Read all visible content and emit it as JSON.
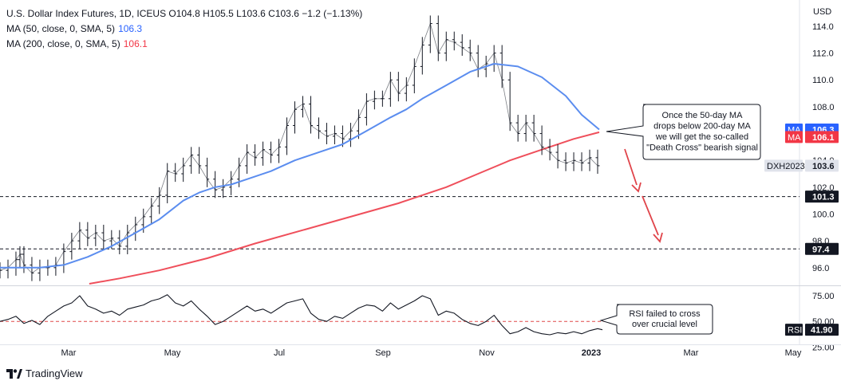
{
  "legend": {
    "main": "U.S. Dollar Index Futures, 1D, ICEUS  O104.8  H105.5  L103.6  C103.6  −1.2 (−1.13%)",
    "ma50_label": "MA (50, close, 0, SMA, 5)",
    "ma50_value": "106.3",
    "ma200_label": "MA (200, close, 0, SMA, 5)",
    "ma200_value": "106.1"
  },
  "currency": "USD",
  "brand": "TradingView",
  "colors": {
    "ma50": "#5b8def",
    "ma200": "#ef4f5b",
    "price": "#131722",
    "rsi": "#131722",
    "rsi_mid": "#e04848",
    "arrow": "#e0444a"
  },
  "chart_data": [
    {
      "type": "line",
      "panel": "price",
      "ylim": [
        94.8,
        115.6
      ],
      "y_ticks": [
        "114.0",
        "112.0",
        "110.0",
        "108.0",
        "104.0",
        "102.0",
        "100.0",
        "98.0",
        "96.0"
      ],
      "x_ticks": [
        "Mar",
        "May",
        "Jul",
        "Sep",
        "Nov",
        "2023",
        "Mar",
        "May"
      ],
      "price_points": [
        [
          0,
          95.8
        ],
        [
          10,
          96.0
        ],
        [
          20,
          96.6
        ],
        [
          25,
          97.0
        ],
        [
          30,
          96.2
        ],
        [
          40,
          95.6
        ],
        [
          50,
          96.0
        ],
        [
          60,
          96.0
        ],
        [
          70,
          96.2
        ],
        [
          80,
          97.2
        ],
        [
          90,
          98.0
        ],
        [
          100,
          98.8
        ],
        [
          110,
          98.2
        ],
        [
          120,
          98.6
        ],
        [
          130,
          98.0
        ],
        [
          140,
          98.2
        ],
        [
          150,
          97.6
        ],
        [
          160,
          98.6
        ],
        [
          170,
          99.2
        ],
        [
          180,
          99.8
        ],
        [
          190,
          100.6
        ],
        [
          200,
          101.4
        ],
        [
          210,
          103.2
        ],
        [
          220,
          103.0
        ],
        [
          230,
          103.6
        ],
        [
          240,
          104.4
        ],
        [
          250,
          103.6
        ],
        [
          260,
          102.6
        ],
        [
          270,
          101.8
        ],
        [
          280,
          102.0
        ],
        [
          290,
          102.6
        ],
        [
          300,
          103.6
        ],
        [
          310,
          104.6
        ],
        [
          320,
          104.2
        ],
        [
          330,
          104.8
        ],
        [
          340,
          104.4
        ],
        [
          350,
          105.0
        ],
        [
          360,
          106.6
        ],
        [
          370,
          107.8
        ],
        [
          380,
          108.2
        ],
        [
          390,
          106.6
        ],
        [
          400,
          106.2
        ],
        [
          410,
          105.8
        ],
        [
          420,
          106.0
        ],
        [
          430,
          105.6
        ],
        [
          440,
          106.2
        ],
        [
          450,
          107.2
        ],
        [
          460,
          108.4
        ],
        [
          470,
          108.6
        ],
        [
          480,
          108.6
        ],
        [
          490,
          110.0
        ],
        [
          500,
          109.0
        ],
        [
          510,
          109.6
        ],
        [
          520,
          111.0
        ],
        [
          530,
          112.6
        ],
        [
          540,
          114.2
        ],
        [
          550,
          112.0
        ],
        [
          560,
          113.0
        ],
        [
          570,
          112.8
        ],
        [
          580,
          112.4
        ],
        [
          590,
          112.0
        ],
        [
          600,
          110.8
        ],
        [
          610,
          111.2
        ],
        [
          620,
          112.0
        ],
        [
          630,
          110.0
        ],
        [
          640,
          106.8
        ],
        [
          650,
          106.0
        ],
        [
          660,
          106.8
        ],
        [
          670,
          106.0
        ],
        [
          680,
          105.0
        ],
        [
          690,
          104.6
        ],
        [
          700,
          104.0
        ],
        [
          710,
          103.8
        ],
        [
          720,
          104.0
        ],
        [
          730,
          103.8
        ],
        [
          740,
          104.2
        ],
        [
          750,
          103.6
        ]
      ],
      "ma50_points": [
        [
          0,
          96.0
        ],
        [
          50,
          96.0
        ],
        [
          80,
          96.2
        ],
        [
          110,
          96.8
        ],
        [
          140,
          97.6
        ],
        [
          170,
          98.6
        ],
        [
          200,
          99.6
        ],
        [
          230,
          101.0
        ],
        [
          250,
          101.6
        ],
        [
          270,
          102.0
        ],
        [
          290,
          102.2
        ],
        [
          310,
          102.6
        ],
        [
          340,
          103.2
        ],
        [
          370,
          104.0
        ],
        [
          400,
          104.6
        ],
        [
          430,
          105.2
        ],
        [
          460,
          106.2
        ],
        [
          490,
          107.2
        ],
        [
          510,
          107.8
        ],
        [
          530,
          108.6
        ],
        [
          560,
          109.6
        ],
        [
          590,
          110.6
        ],
        [
          620,
          111.2
        ],
        [
          650,
          111.0
        ],
        [
          680,
          110.2
        ],
        [
          710,
          108.8
        ],
        [
          730,
          107.4
        ],
        [
          752,
          106.3
        ]
      ],
      "ma200_points": [
        [
          112,
          94.8
        ],
        [
          150,
          95.2
        ],
        [
          200,
          95.8
        ],
        [
          260,
          96.7
        ],
        [
          320,
          97.8
        ],
        [
          380,
          98.8
        ],
        [
          440,
          99.8
        ],
        [
          500,
          100.8
        ],
        [
          560,
          102.0
        ],
        [
          600,
          103.0
        ],
        [
          640,
          104.0
        ],
        [
          680,
          104.8
        ],
        [
          720,
          105.6
        ],
        [
          752,
          106.1
        ]
      ],
      "levels": [
        {
          "value": 101.3,
          "label": "101.3"
        },
        {
          "value": 97.4,
          "label": "97.4"
        }
      ],
      "price_badges": [
        {
          "label": "MA",
          "value": "106.3",
          "color": "#2962ff"
        },
        {
          "label": "MA",
          "value": "106.1",
          "color": "#f23645"
        },
        {
          "label": "DXH2023",
          "value": "103.6",
          "color": "#e0e3eb"
        }
      ],
      "annotation": [
        "Once the 50-day MA",
        "drops below 200-day MA",
        "we will get the so-called",
        "\"Death Cross\" bearish signal"
      ]
    },
    {
      "type": "line",
      "panel": "rsi",
      "ylim": [
        30,
        82
      ],
      "y_ticks": [
        "75.00",
        "50.00",
        "25.00"
      ],
      "midline": 50,
      "rsi_points": [
        [
          0,
          50
        ],
        [
          10,
          52
        ],
        [
          20,
          55
        ],
        [
          30,
          48
        ],
        [
          40,
          51
        ],
        [
          50,
          47
        ],
        [
          60,
          55
        ],
        [
          70,
          60
        ],
        [
          80,
          65
        ],
        [
          90,
          68
        ],
        [
          100,
          75
        ],
        [
          110,
          65
        ],
        [
          120,
          62
        ],
        [
          130,
          58
        ],
        [
          140,
          60
        ],
        [
          150,
          56
        ],
        [
          160,
          62
        ],
        [
          170,
          64
        ],
        [
          180,
          66
        ],
        [
          190,
          70
        ],
        [
          200,
          72
        ],
        [
          210,
          76
        ],
        [
          220,
          68
        ],
        [
          230,
          65
        ],
        [
          240,
          70
        ],
        [
          250,
          62
        ],
        [
          260,
          55
        ],
        [
          270,
          47
        ],
        [
          280,
          50
        ],
        [
          290,
          55
        ],
        [
          300,
          60
        ],
        [
          310,
          65
        ],
        [
          320,
          60
        ],
        [
          330,
          62
        ],
        [
          340,
          58
        ],
        [
          350,
          63
        ],
        [
          360,
          68
        ],
        [
          370,
          70
        ],
        [
          380,
          72
        ],
        [
          390,
          58
        ],
        [
          400,
          52
        ],
        [
          410,
          50
        ],
        [
          420,
          55
        ],
        [
          430,
          53
        ],
        [
          440,
          58
        ],
        [
          450,
          63
        ],
        [
          460,
          66
        ],
        [
          470,
          65
        ],
        [
          480,
          60
        ],
        [
          490,
          68
        ],
        [
          500,
          62
        ],
        [
          510,
          66
        ],
        [
          520,
          70
        ],
        [
          530,
          75
        ],
        [
          540,
          72
        ],
        [
          550,
          56
        ],
        [
          560,
          60
        ],
        [
          570,
          58
        ],
        [
          580,
          52
        ],
        [
          590,
          48
        ],
        [
          600,
          46
        ],
        [
          610,
          50
        ],
        [
          620,
          56
        ],
        [
          630,
          46
        ],
        [
          640,
          38
        ],
        [
          650,
          40
        ],
        [
          660,
          44
        ],
        [
          670,
          40
        ],
        [
          680,
          38
        ],
        [
          690,
          37
        ],
        [
          700,
          39
        ],
        [
          710,
          38
        ],
        [
          720,
          40
        ],
        [
          730,
          38
        ],
        [
          740,
          41
        ],
        [
          750,
          43
        ],
        [
          756,
          41.9
        ]
      ],
      "rsi_badge": {
        "label": "RSI",
        "value": "41.90"
      },
      "annotation": [
        "RSI failed to cross",
        "over crucial level"
      ]
    }
  ]
}
